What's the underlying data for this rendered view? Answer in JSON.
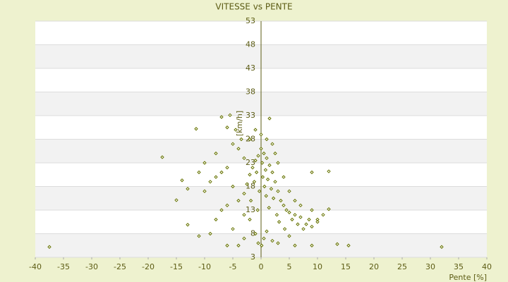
{
  "chart_data": {
    "type": "scatter",
    "title": "VITESSE vs PENTE",
    "x_label": "Pente [%]",
    "y_label": "[km/h]",
    "xlim": [
      -40,
      40
    ],
    "xticks": [
      -40,
      -35,
      -30,
      -25,
      -20,
      -15,
      -10,
      -5,
      0,
      5,
      10,
      15,
      20,
      25,
      30,
      35,
      40
    ],
    "ylim": [
      3,
      53
    ],
    "yticks": [
      3,
      8,
      13,
      18,
      23,
      28,
      33,
      38,
      43,
      48,
      53
    ],
    "grid": true,
    "color": "#667300",
    "x": [
      -37.5,
      32,
      15.5,
      13.5,
      -17.5,
      -11.5,
      -14,
      -15,
      -13,
      -13,
      -11,
      -7,
      -5.5,
      1.5,
      9,
      12,
      12,
      10,
      0,
      0.5,
      -0.5,
      1,
      -1,
      0.2,
      1.5,
      -1.5,
      0.8,
      -0.8,
      2,
      -2,
      0.3,
      1.2,
      -1.2,
      2.5,
      -2.5,
      0.6,
      1.8,
      -0.3,
      3,
      -3,
      0.9,
      2.2,
      -1.8,
      3.5,
      4,
      1.4,
      -0.6,
      4.5,
      5,
      2.8,
      6,
      5.5,
      7,
      6.5,
      3.2,
      8,
      7.5,
      4.2,
      1,
      -1,
      0.5,
      2,
      -0.5,
      0.1,
      5,
      9,
      8.5,
      10,
      -4,
      -5,
      -3.5,
      -4.5,
      -6,
      -3,
      -6,
      -7,
      -8,
      -9,
      -10,
      -5,
      -4,
      -6,
      -7,
      -8,
      -9,
      -5,
      -3,
      -4,
      -6,
      -2,
      -3,
      -8,
      -10,
      -11,
      0,
      1,
      2,
      2.5,
      3,
      -1,
      -2,
      4,
      5,
      6,
      7,
      9,
      3,
      6,
      9,
      11
    ],
    "y": [
      5.2,
      5.2,
      5.5,
      5.8,
      24.2,
      30.2,
      19.3,
      15.1,
      17.5,
      9.9,
      7.5,
      32.7,
      33.1,
      32.4,
      21,
      21.2,
      13.2,
      11,
      26,
      25,
      24.5,
      24,
      23.5,
      23,
      22.5,
      22,
      21.5,
      21,
      21,
      20.5,
      20,
      19.5,
      19,
      19,
      18.5,
      18,
      17.5,
      17,
      17,
      16.5,
      16,
      15.5,
      15,
      15,
      14,
      13.5,
      13,
      13,
      12.5,
      12,
      12,
      11,
      11.5,
      10,
      10.5,
      10,
      9,
      9,
      8.5,
      8,
      7,
      6.5,
      6,
      5.5,
      7.5,
      9.5,
      11,
      10.5,
      26,
      27,
      28,
      30,
      30.5,
      24,
      22,
      21,
      20,
      19,
      17,
      18,
      15,
      14,
      13,
      11,
      8,
      9,
      7,
      5.5,
      5.5,
      11,
      12,
      25,
      23,
      21,
      29,
      28,
      27,
      25,
      23,
      30,
      28,
      20,
      17,
      15,
      14,
      13,
      6,
      5.5,
      5.5,
      12
    ]
  }
}
